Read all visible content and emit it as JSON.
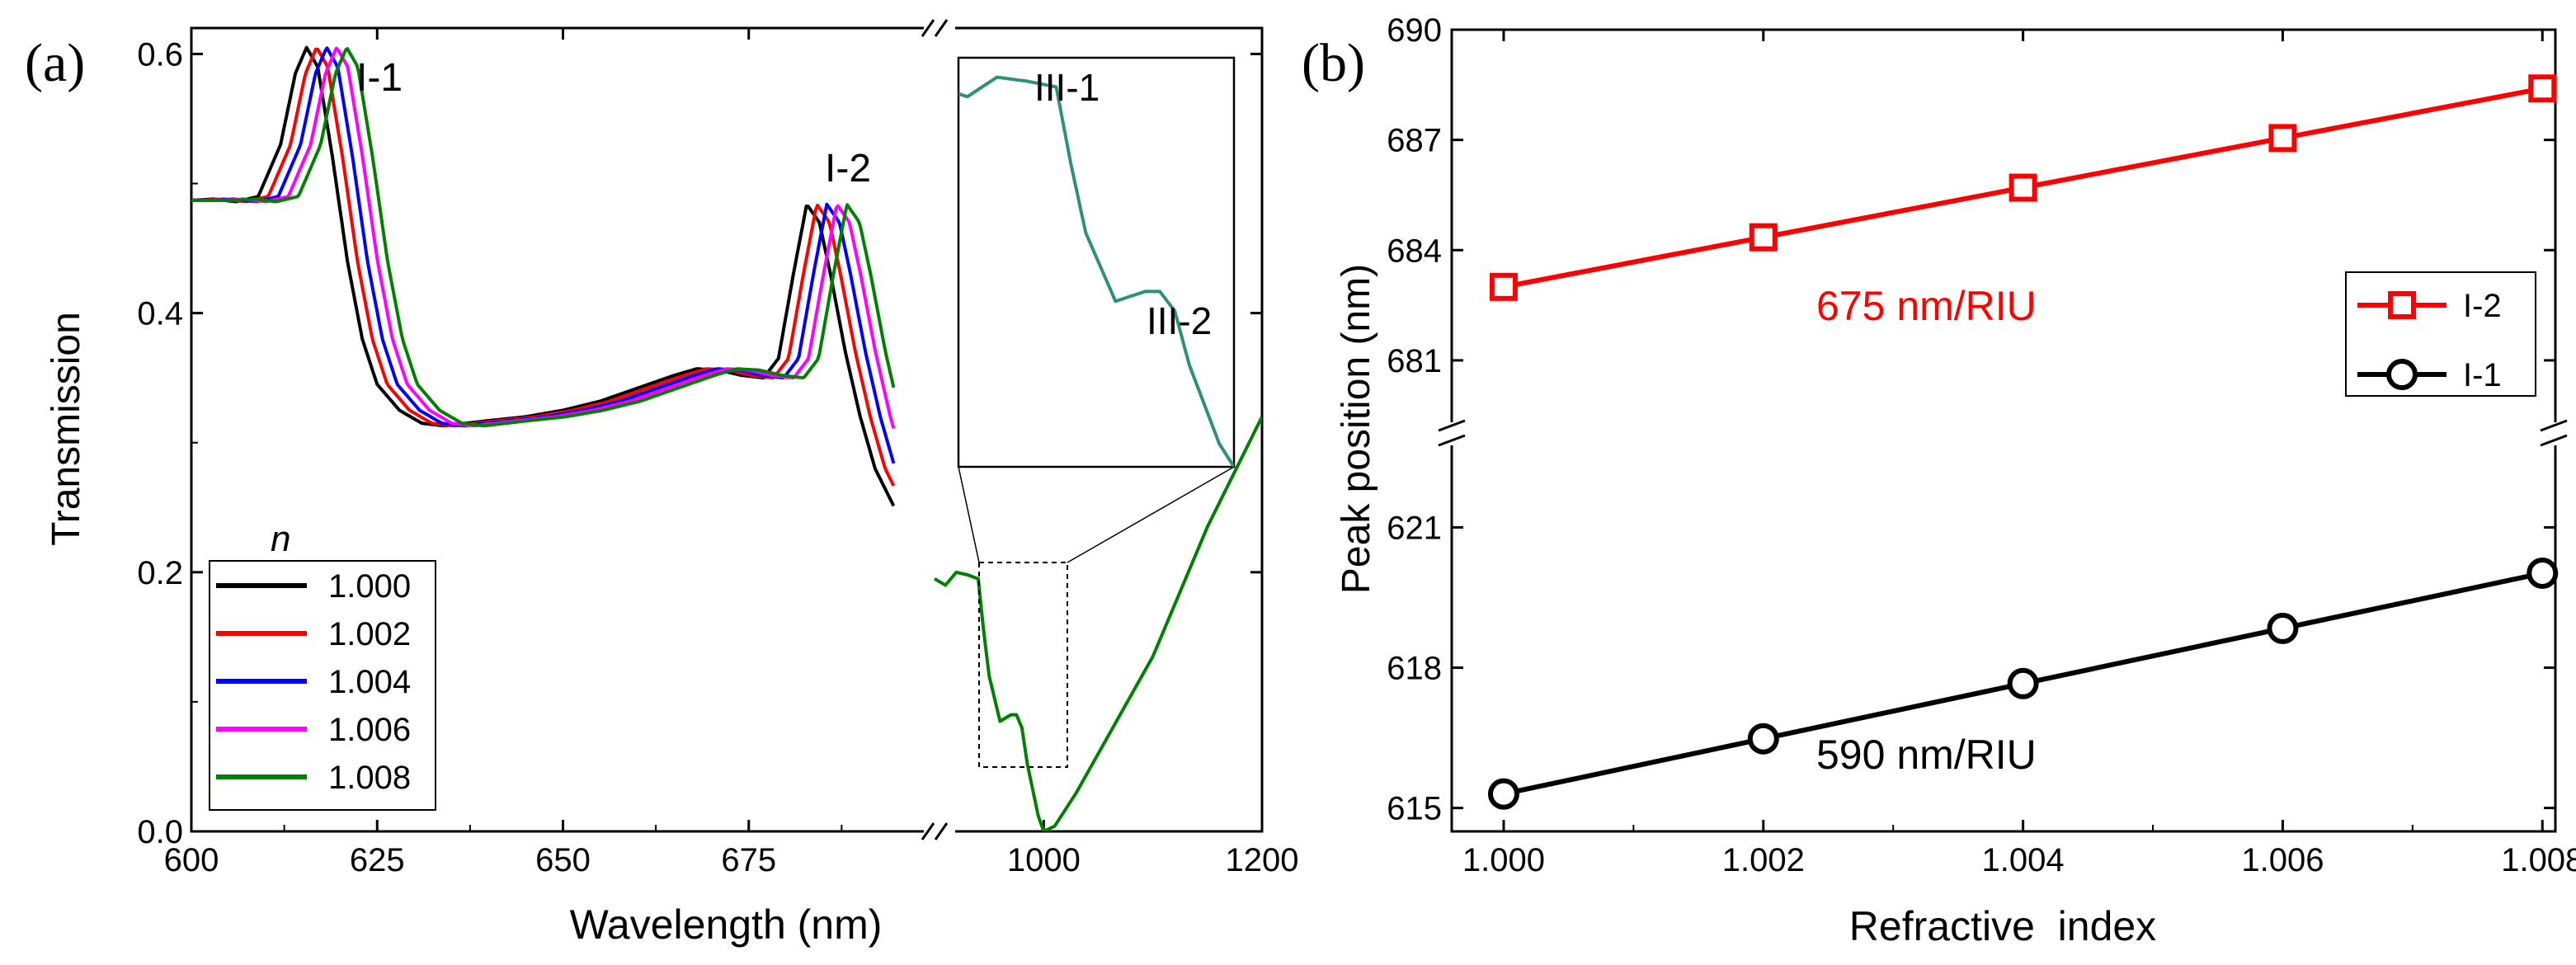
{
  "chart_data": [
    {
      "id": "a",
      "panel_label": "(a)",
      "type": "line",
      "xlabel": "Wavelength (nm)",
      "ylabel": "Transmission",
      "xlim_left": [
        600,
        700
      ],
      "xlim_right": [
        900,
        1200
      ],
      "ylim": [
        0.0,
        0.62
      ],
      "yticks": [
        "0.0",
        "0.2",
        "0.4",
        "0.6"
      ],
      "xticks": [
        "600",
        "625",
        "650",
        "675",
        "1000",
        "1200"
      ],
      "legend": {
        "title": "n",
        "position": "bottom-left",
        "labels": [
          "1.000",
          "1.002",
          "1.004",
          "1.006",
          "1.008"
        ]
      },
      "series": [
        {
          "name": "1.000",
          "color": "#000000",
          "shift_nm": 0
        },
        {
          "name": "1.002",
          "color": "#ff0000",
          "shift_nm": 1.35
        },
        {
          "name": "1.004",
          "color": "#0000ff",
          "shift_nm": 2.7
        },
        {
          "name": "1.006",
          "color": "#ff00ff",
          "shift_nm": 4.05
        },
        {
          "name": "1.008",
          "color": "#008000",
          "shift_nm": 5.4
        }
      ],
      "base_curve_n1000": {
        "x": [
          600,
          603,
          606,
          609,
          612,
          614,
          615.5,
          617,
          619,
          621,
          623,
          625,
          628,
          631,
          634,
          637,
          640,
          645,
          650,
          655,
          660,
          665,
          668,
          671,
          674,
          677,
          679,
          681,
          682.8,
          684.5,
          686,
          688,
          690,
          692,
          694.6
        ],
        "y": [
          0.487,
          0.488,
          0.486,
          0.49,
          0.53,
          0.585,
          0.605,
          0.59,
          0.52,
          0.44,
          0.38,
          0.345,
          0.325,
          0.315,
          0.313,
          0.315,
          0.317,
          0.32,
          0.325,
          0.332,
          0.342,
          0.352,
          0.357,
          0.356,
          0.352,
          0.35,
          0.365,
          0.43,
          0.484,
          0.47,
          0.43,
          0.37,
          0.32,
          0.28,
          0.25
        ]
      },
      "peak_labels": [
        "I-1",
        "I-2"
      ],
      "nir_curve": {
        "x": [
          900,
          910,
          920,
          930,
          940,
          945,
          950,
          960,
          970,
          975,
          980,
          985,
          990,
          995,
          1000,
          1010,
          1030,
          1050,
          1100,
          1150,
          1200
        ],
        "y": [
          0.195,
          0.19,
          0.2,
          0.198,
          0.195,
          0.155,
          0.12,
          0.085,
          0.09,
          0.09,
          0.08,
          0.052,
          0.032,
          0.012,
          0.0,
          0.004,
          0.03,
          0.06,
          0.135,
          0.235,
          0.32
        ]
      },
      "inset": {
        "xlim": [
          907,
          1000
        ],
        "ylim": [
          0.0,
          0.21
        ],
        "labels": [
          "III-1",
          "III-2"
        ]
      }
    },
    {
      "id": "b",
      "panel_label": "(b)",
      "type": "line",
      "xlabel": "Refractive  index",
      "ylabel": "Peak position (nm)",
      "xlim": [
        0.9996,
        1.0081
      ],
      "x": [
        1.0,
        1.002,
        1.004,
        1.006,
        1.008
      ],
      "xticks": [
        "1.000",
        "1.002",
        "1.004",
        "1.006",
        "1.008"
      ],
      "upper_ylim": [
        679,
        690
      ],
      "upper_yticks": [
        "681",
        "684",
        "687",
        "690"
      ],
      "lower_ylim": [
        614.5,
        623
      ],
      "lower_yticks": [
        "615",
        "618",
        "621"
      ],
      "legend": {
        "position": "right",
        "labels": [
          "I-2",
          "I-1"
        ]
      },
      "series": [
        {
          "name": "I-2",
          "color": "#ff0000",
          "marker": "square",
          "values": [
            683.0,
            684.35,
            685.7,
            687.05,
            688.4
          ],
          "sensitivity": "675 nm/RIU"
        },
        {
          "name": "I-1",
          "color": "#000000",
          "marker": "circle",
          "values": [
            615.3,
            616.48,
            617.66,
            618.84,
            620.02
          ],
          "sensitivity": "590 nm/RIU"
        }
      ]
    }
  ]
}
